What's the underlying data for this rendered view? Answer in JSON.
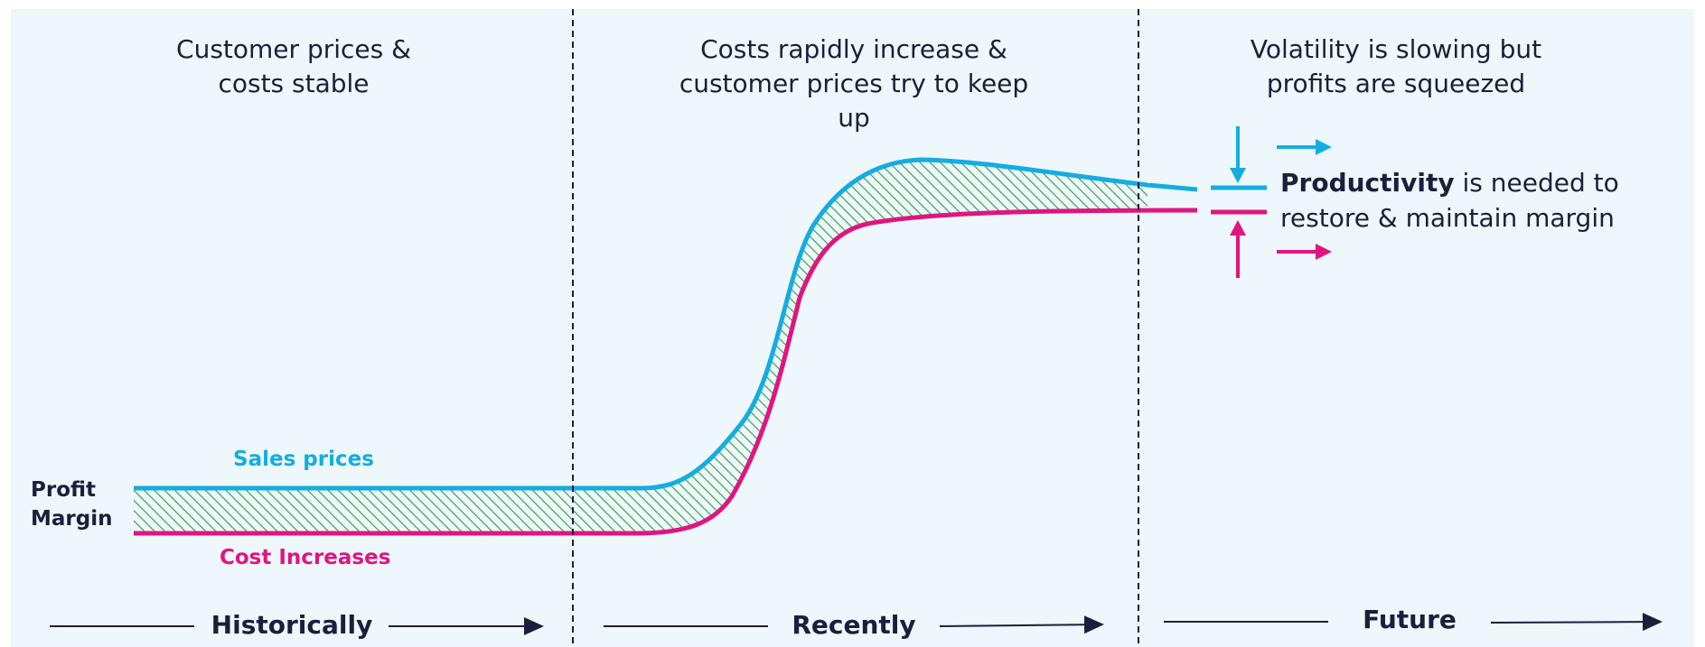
{
  "headers": {
    "historic": [
      "Customer prices &",
      "costs stable"
    ],
    "recent": [
      "Costs rapidly increase &",
      "customer prices try to keep",
      "up"
    ],
    "future": [
      "Volatility is slowing but",
      "profits are squeezed"
    ]
  },
  "productivity": {
    "bold": "Productivity",
    "rest_line1": " is needed to",
    "line2": "restore & maintain margin"
  },
  "labels": {
    "sales_prices": "Sales prices",
    "cost_increases": "Cost Increases",
    "profit_margin_line1": "Profit",
    "profit_margin_line2": "Margin"
  },
  "timeline": {
    "historically": "Historically",
    "recently": "Recently",
    "future": "Future"
  },
  "colors": {
    "background_panel": "#eef7fb",
    "sales": "#14ade0",
    "cost": "#e0157f",
    "hatch": "#3aa34a",
    "text": "#1b1f3b"
  }
}
